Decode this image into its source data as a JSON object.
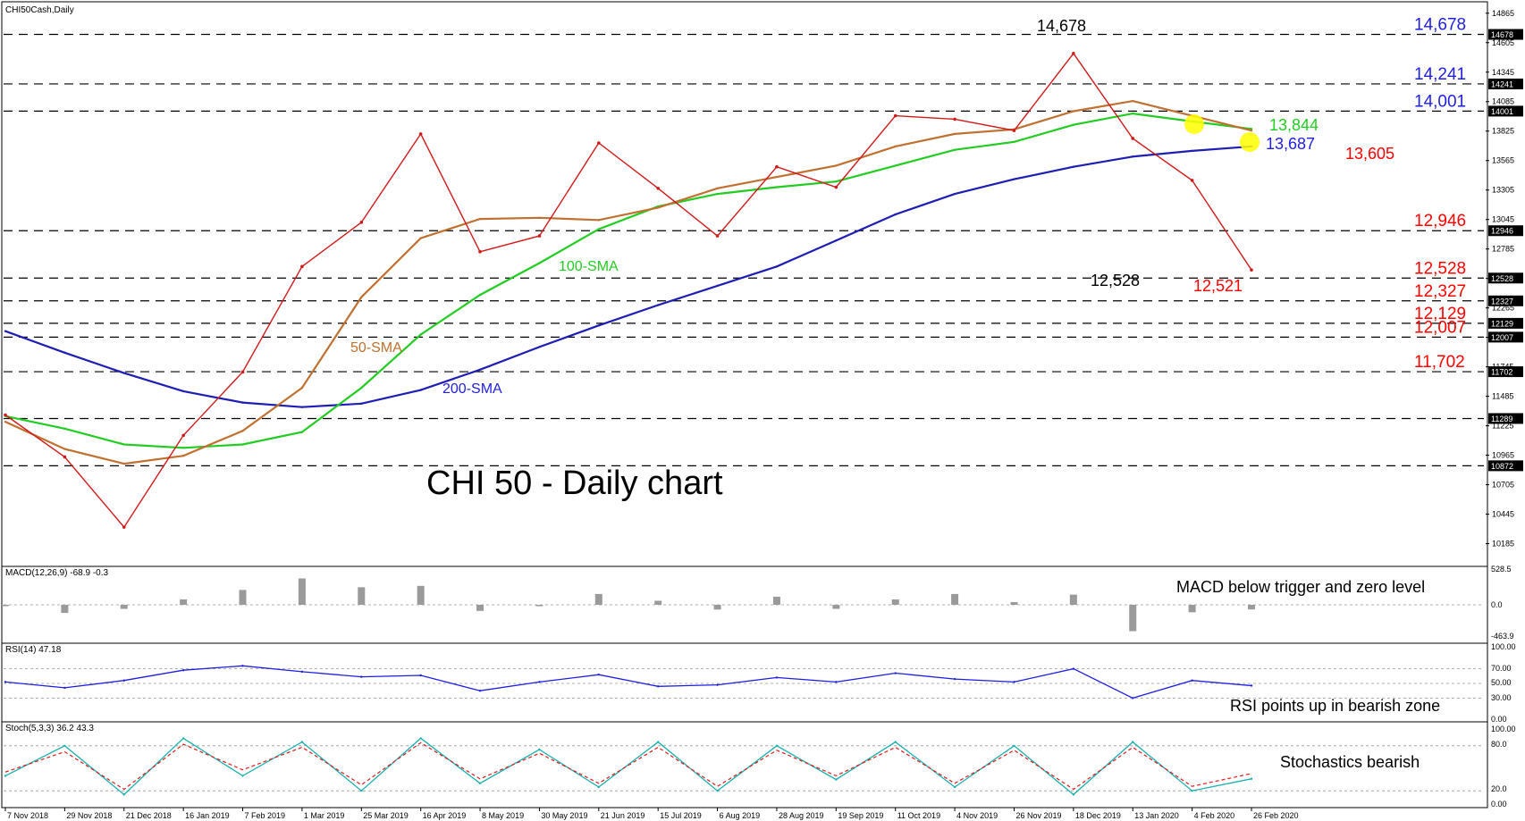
{
  "chart_data": {
    "type": "line",
    "instrument_label": "CHI50Cash,Daily",
    "title": "CHI 50 - Daily chart",
    "x_tick_labels": [
      "7 Nov 2018",
      "29 Nov 2018",
      "21 Dec 2018",
      "16 Jan 2019",
      "7 Feb 2019",
      "1 Mar 2019",
      "25 Mar 2019",
      "16 Apr 2019",
      "8 May 2019",
      "30 May 2019",
      "21 Jun 2019",
      "15 Jul 2019",
      "6 Aug 2019",
      "28 Aug 2019",
      "19 Sep 2019",
      "11 Oct 2019",
      "4 Nov 2019",
      "26 Nov 2019",
      "18 Dec 2019",
      "13 Jan 2020",
      "4 Feb 2020",
      "26 Feb 2020"
    ],
    "y_tick_labels": [
      "14865",
      "14605",
      "14345",
      "14085",
      "13825",
      "13565",
      "13305",
      "13045",
      "12785",
      "12525",
      "12265",
      "12005",
      "11745",
      "11485",
      "11225",
      "10965",
      "10705",
      "10445",
      "10185"
    ],
    "ylim": [
      10000,
      14950
    ],
    "price_series": [
      {
        "name": "200-SMA",
        "values": [
          12060,
          11870,
          11690,
          11530,
          11430,
          11390,
          11420,
          11540,
          11720,
          11920,
          12110,
          12290,
          12460,
          12630,
          12860,
          13090,
          13270,
          13400,
          13510,
          13600,
          13650,
          13690
        ],
        "color": "#1e1eb4"
      },
      {
        "name": "100-SMA",
        "values": [
          11310,
          11200,
          11060,
          11030,
          11060,
          11170,
          11560,
          12030,
          12380,
          12660,
          12960,
          13160,
          13270,
          13330,
          13380,
          13520,
          13660,
          13730,
          13880,
          13980,
          13910,
          13844
        ],
        "color": "#22cc22"
      },
      {
        "name": "50-SMA",
        "values": [
          11260,
          11020,
          10890,
          10960,
          11180,
          11560,
          12360,
          12880,
          13050,
          13060,
          13040,
          13150,
          13320,
          13420,
          13520,
          13690,
          13800,
          13840,
          14000,
          14090,
          13960,
          13830
        ],
        "color": "#c07030"
      },
      {
        "name": "Price",
        "values": [
          11320,
          10950,
          10330,
          11140,
          11700,
          12630,
          13020,
          13800,
          12760,
          12900,
          13720,
          13320,
          12900,
          13510,
          13330,
          13960,
          13930,
          13830,
          14510,
          13760,
          13390,
          12600
        ],
        "color": "#d01a1a"
      }
    ],
    "highlight_values": [
      {
        "text": "14,678",
        "value": 14678,
        "color": "#1f1fe0"
      },
      {
        "text": "14,241",
        "value": 14241,
        "color": "#1f1fe0"
      },
      {
        "text": "14,001",
        "value": 14001,
        "color": "#1f1fe0"
      },
      {
        "text": "12,946",
        "value": 12946,
        "color": "#ff0000"
      },
      {
        "text": "12,528",
        "value": 12528,
        "color": "#ff0000"
      },
      {
        "text": "12,327",
        "value": 12327,
        "color": "#ff0000"
      },
      {
        "text": "12,129",
        "value": 12129,
        "color": "#ff0000"
      },
      {
        "text": "12,007",
        "value": 12007,
        "color": "#ff0000"
      },
      {
        "text": "11,702",
        "value": 11702,
        "color": "#ff0000"
      }
    ],
    "right_axis_boxes": [
      "14678",
      "14241",
      "14001",
      "12946",
      "12528",
      "12327",
      "12129",
      "12007",
      "11702",
      "11289",
      "10872"
    ],
    "right_axis_box_values": [
      14678,
      14241,
      14001,
      12946,
      12528,
      12327,
      12129,
      12007,
      11702,
      11289,
      10872
    ],
    "annotations": [
      {
        "text": "14,678",
        "color": "#000000"
      },
      {
        "text": "12,528",
        "color": "#000000"
      },
      {
        "text": "12,521",
        "color": "#ff0000"
      },
      {
        "text": "13,844",
        "color": "#22cc22"
      },
      {
        "text": "13,687",
        "color": "#1f1fe0"
      },
      {
        "text": "13,605",
        "color": "#ff0000"
      },
      {
        "text": "100-SMA",
        "color": "#22cc22"
      },
      {
        "text": "50-SMA",
        "color": "#c07030"
      },
      {
        "text": "200-SMA",
        "color": "#1f1fe0"
      }
    ],
    "macd": {
      "label": "MACD(12,26,9) -68.9 -0.3",
      "axis_labels": [
        "528.5",
        "0.0",
        "-463.9"
      ],
      "note": "MACD below trigger and zero level",
      "values": [
        -20,
        -120,
        -60,
        80,
        220,
        390,
        260,
        280,
        -90,
        -20,
        160,
        60,
        -70,
        120,
        -60,
        80,
        160,
        40,
        150,
        -390,
        -110,
        -69
      ]
    },
    "rsi": {
      "label": "RSI(14) 47.18",
      "axis_labels": [
        "100.00",
        "70.00",
        "50.00",
        "30.00",
        "0.00"
      ],
      "note": "RSI points up in bearish zone",
      "values": [
        52,
        44,
        54,
        68,
        74,
        66,
        59,
        61,
        40,
        52,
        62,
        46,
        48,
        58,
        52,
        64,
        56,
        52,
        70,
        30,
        54,
        47
      ]
    },
    "stochastics": {
      "label": "Stoch(5,3,3) 36.2 43.3",
      "axis_labels": [
        "100.00",
        "80.0",
        "20.0",
        "0.00"
      ],
      "note": "Stochastics bearish",
      "k_values": [
        40,
        80,
        15,
        90,
        40,
        85,
        20,
        90,
        30,
        75,
        25,
        85,
        20,
        80,
        35,
        85,
        25,
        80,
        15,
        85,
        20,
        36
      ],
      "d_values": [
        45,
        72,
        22,
        82,
        48,
        78,
        28,
        84,
        36,
        70,
        30,
        78,
        26,
        74,
        40,
        78,
        30,
        74,
        22,
        78,
        26,
        43
      ]
    }
  }
}
